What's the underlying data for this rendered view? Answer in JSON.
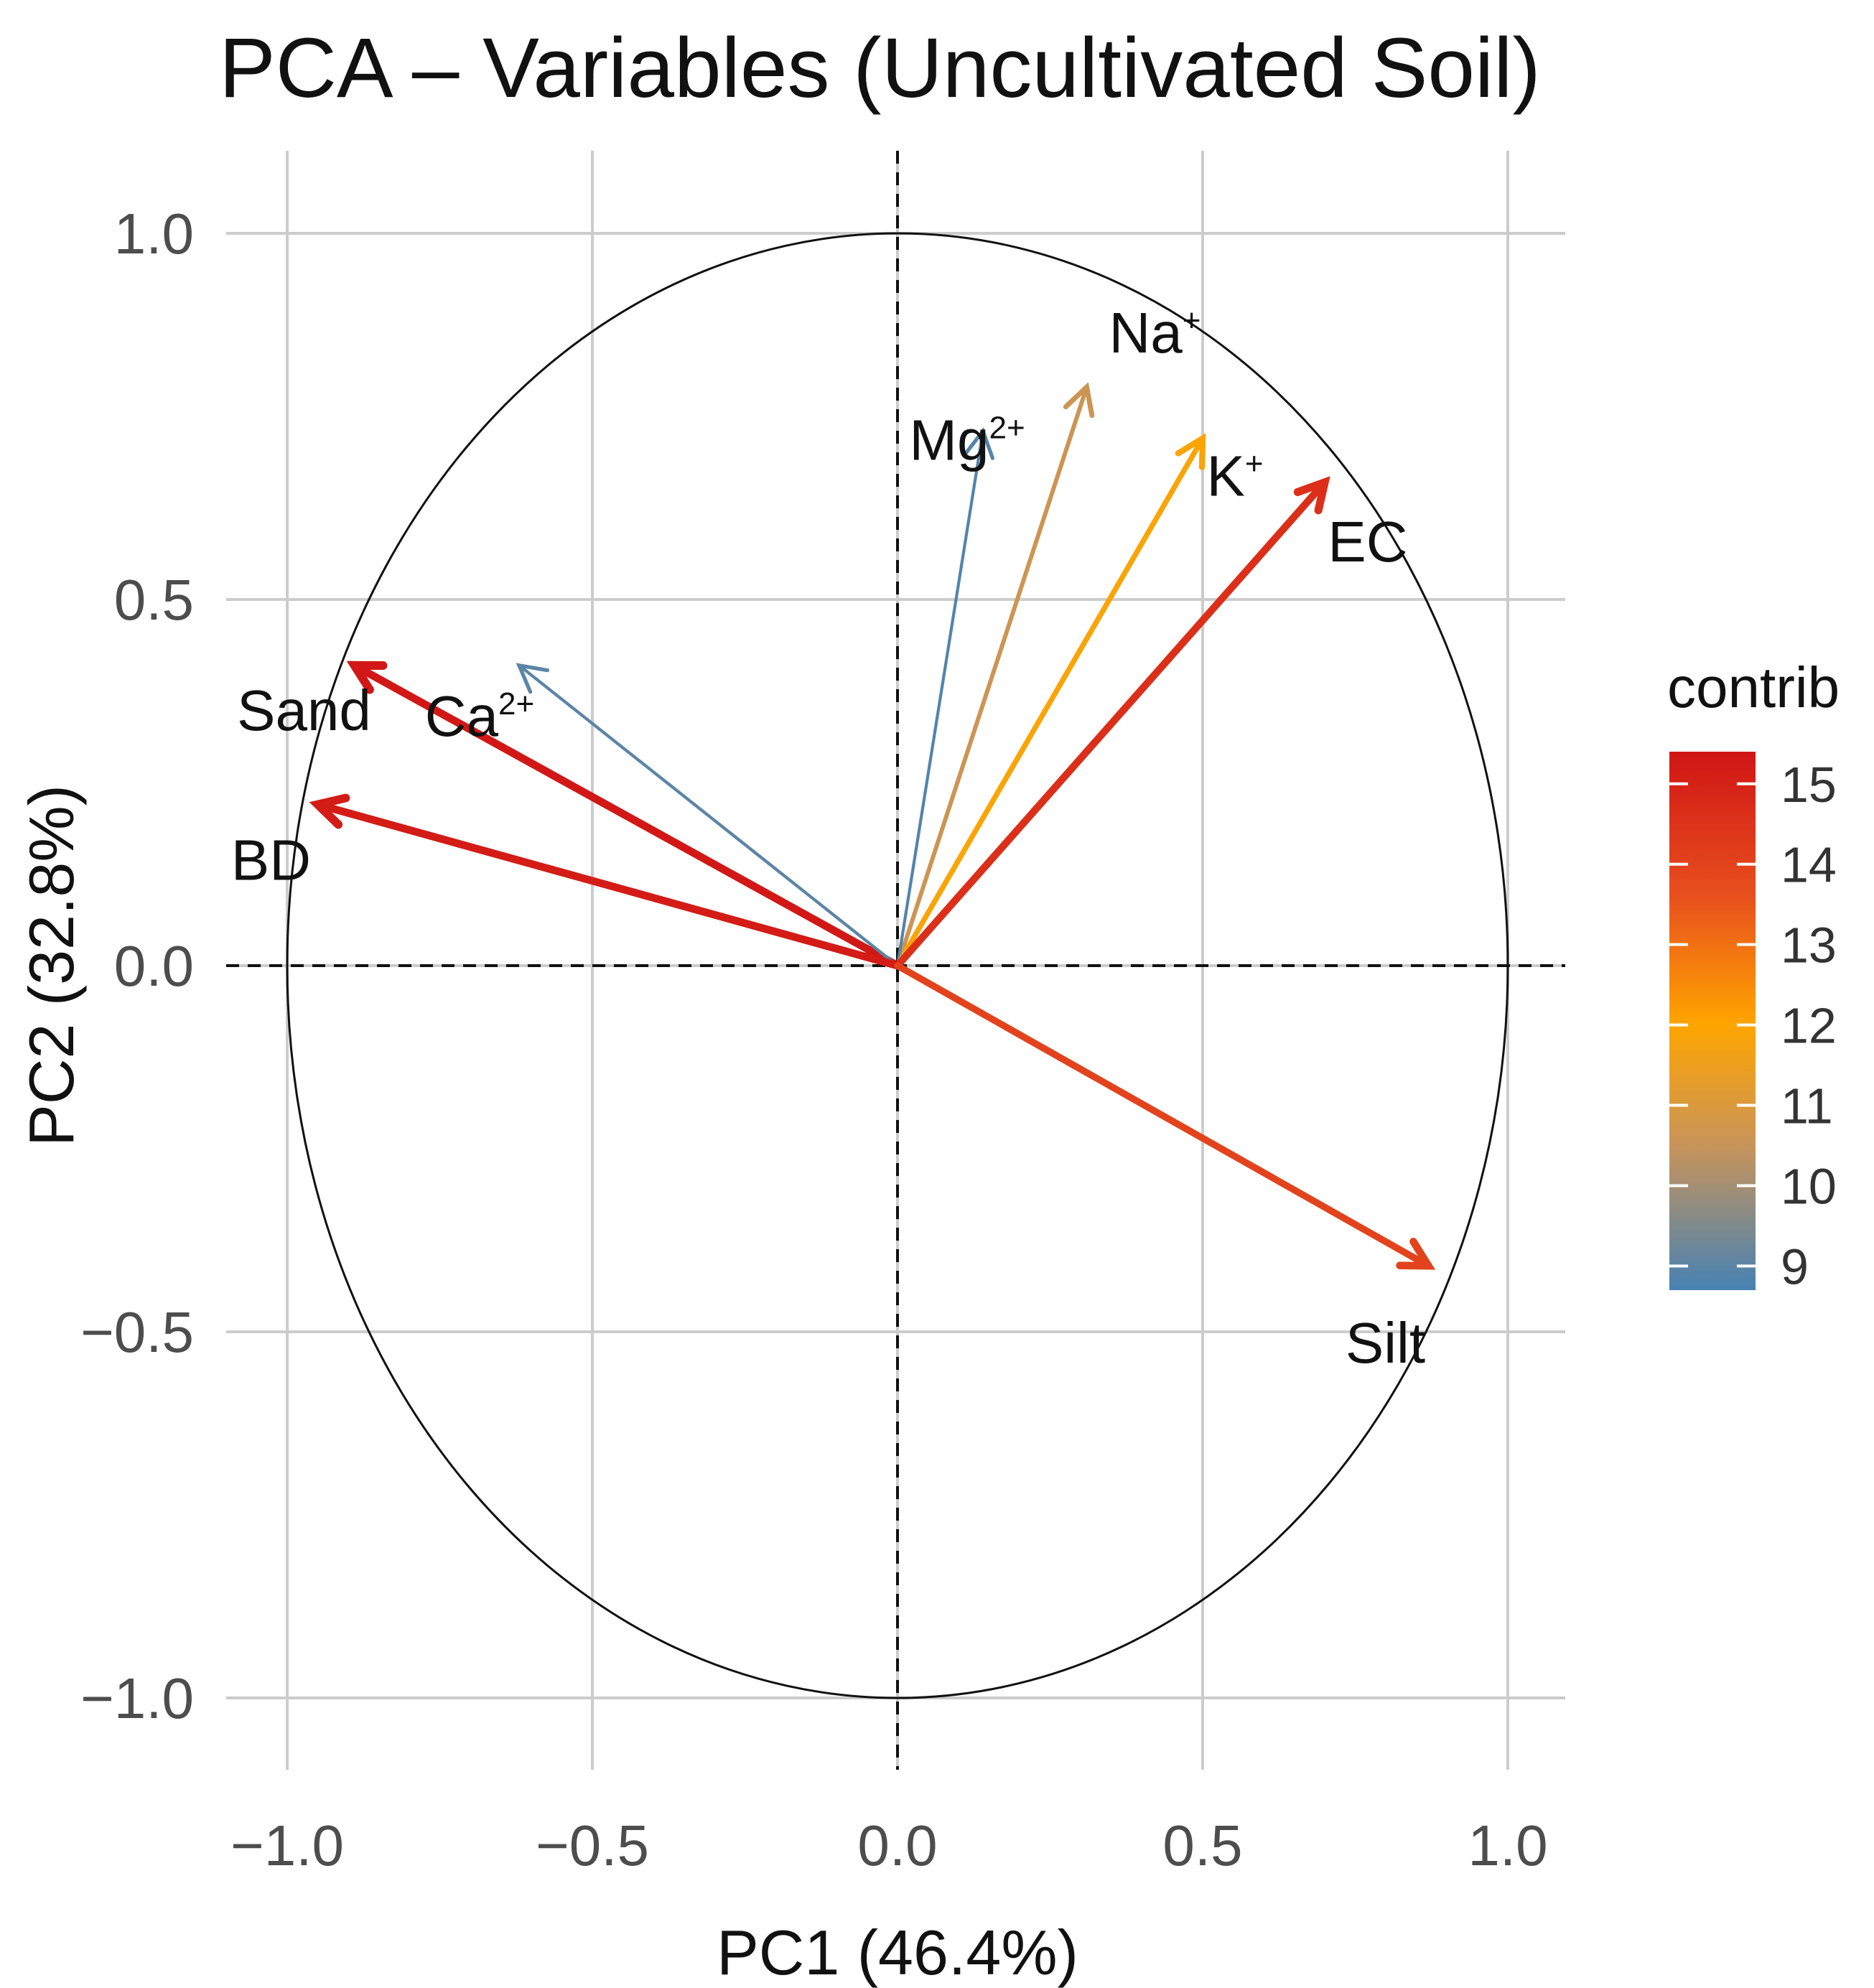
{
  "chart_data": {
    "type": "biplot",
    "title": "PCA – Variables (Uncultivated Soil)",
    "xlabel": "PC1 (46.4%)",
    "ylabel": "PC2 (32.8%)",
    "xlim": [
      -1.0,
      1.0
    ],
    "ylim": [
      -1.0,
      1.0
    ],
    "xticks": [
      -1.0,
      -0.5,
      0.0,
      0.5,
      1.0
    ],
    "yticks": [
      -1.0,
      -0.5,
      0.0,
      0.5,
      1.0
    ],
    "xtick_labels": [
      "−1.0",
      "−0.5",
      "0.0",
      "0.5",
      "1.0"
    ],
    "ytick_labels": [
      "−1.0",
      "−0.5",
      "0.0",
      "0.5",
      "1.0"
    ],
    "grid": true,
    "correlation_circle": true,
    "legend": {
      "title": "contrib",
      "position": "right",
      "range": [
        8.7,
        15.4
      ],
      "ticks": [
        9,
        10,
        11,
        12,
        13,
        14,
        15
      ],
      "tick_labels": [
        "9",
        "10",
        "11",
        "12",
        "13",
        "14",
        "15"
      ],
      "gradient": [
        {
          "value": 8.7,
          "color": "#4682B4"
        },
        {
          "value": 10.5,
          "color": "#C8945A"
        },
        {
          "value": 12.0,
          "color": "#FFA500"
        },
        {
          "value": 13.6,
          "color": "#E8501E"
        },
        {
          "value": 15.4,
          "color": "#D01515"
        }
      ]
    },
    "series": [
      {
        "name": "Na",
        "sup": "+",
        "x": 0.31,
        "y": 0.79,
        "contrib": 10.6
      },
      {
        "name": "Mg",
        "sup": "2+",
        "x": 0.14,
        "y": 0.73,
        "contrib": 8.9
      },
      {
        "name": "K",
        "sup": "+",
        "x": 0.5,
        "y": 0.72,
        "contrib": 11.9
      },
      {
        "name": "EC",
        "sup": "",
        "x": 0.7,
        "y": 0.66,
        "contrib": 14.6
      },
      {
        "name": "Sand",
        "sup": "",
        "x": -0.89,
        "y": 0.41,
        "contrib": 15.3
      },
      {
        "name": "Ca",
        "sup": "2+",
        "x": -0.62,
        "y": 0.41,
        "contrib": 9.0
      },
      {
        "name": "BD",
        "sup": "",
        "x": -0.95,
        "y": 0.22,
        "contrib": 15.2
      },
      {
        "name": "Silt",
        "sup": "",
        "x": 0.87,
        "y": -0.41,
        "contrib": 14.0
      }
    ]
  }
}
